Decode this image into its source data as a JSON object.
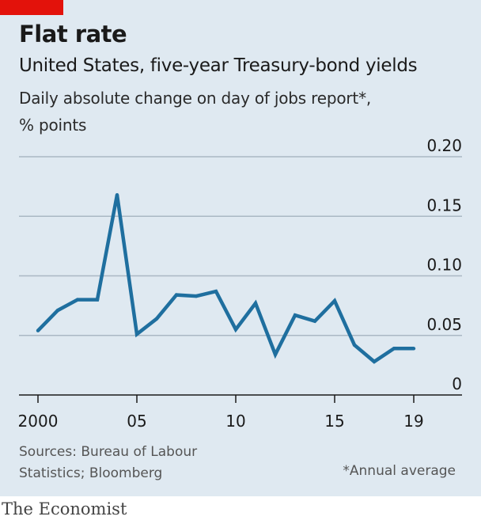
{
  "header": {
    "title": "Flat rate",
    "subtitle": "United States, five-year Treasury-bond yields",
    "description_line1": "Daily absolute change on day of jobs report*,",
    "description_line2": "% points"
  },
  "footer": {
    "source_line1": "Sources: Bureau of Labour",
    "source_line2": "Statistics; Bloomberg",
    "footnote": "*Annual average",
    "brand": "The Economist"
  },
  "colors": {
    "panel": "#dfe9f1",
    "accent": "#e3120b",
    "line": "#1f6f9f",
    "grid": "#aab8c4",
    "axis": "#1a1a1a"
  },
  "chart_data": {
    "type": "line",
    "title": "Flat rate",
    "subtitle": "United States, five-year Treasury-bond yields",
    "ylabel": "% points",
    "x": [
      2000,
      2001,
      2002,
      2003,
      2004,
      2005,
      2006,
      2007,
      2008,
      2009,
      2010,
      2011,
      2012,
      2013,
      2014,
      2015,
      2016,
      2017,
      2018,
      2019
    ],
    "series": [
      {
        "values": [
          0.054,
          0.071,
          0.08,
          0.08,
          0.168,
          0.051,
          0.064,
          0.084,
          0.083,
          0.087,
          0.055,
          0.077,
          0.034,
          0.067,
          0.062,
          0.079,
          0.042,
          0.028,
          0.039,
          0.039
        ]
      }
    ],
    "xlim": [
      2000,
      2020
    ],
    "ylim": [
      0,
      0.2
    ],
    "x_ticks": [
      2000,
      2005,
      2010,
      2015,
      2019
    ],
    "x_tick_labels": [
      "2000",
      "05",
      "10",
      "15",
      "19"
    ],
    "y_ticks": [
      0,
      0.05,
      0.1,
      0.15,
      0.2
    ],
    "y_tick_labels": [
      "0",
      "0.05",
      "0.10",
      "0.15",
      "0.20"
    ],
    "grid": true,
    "legend": "none"
  }
}
